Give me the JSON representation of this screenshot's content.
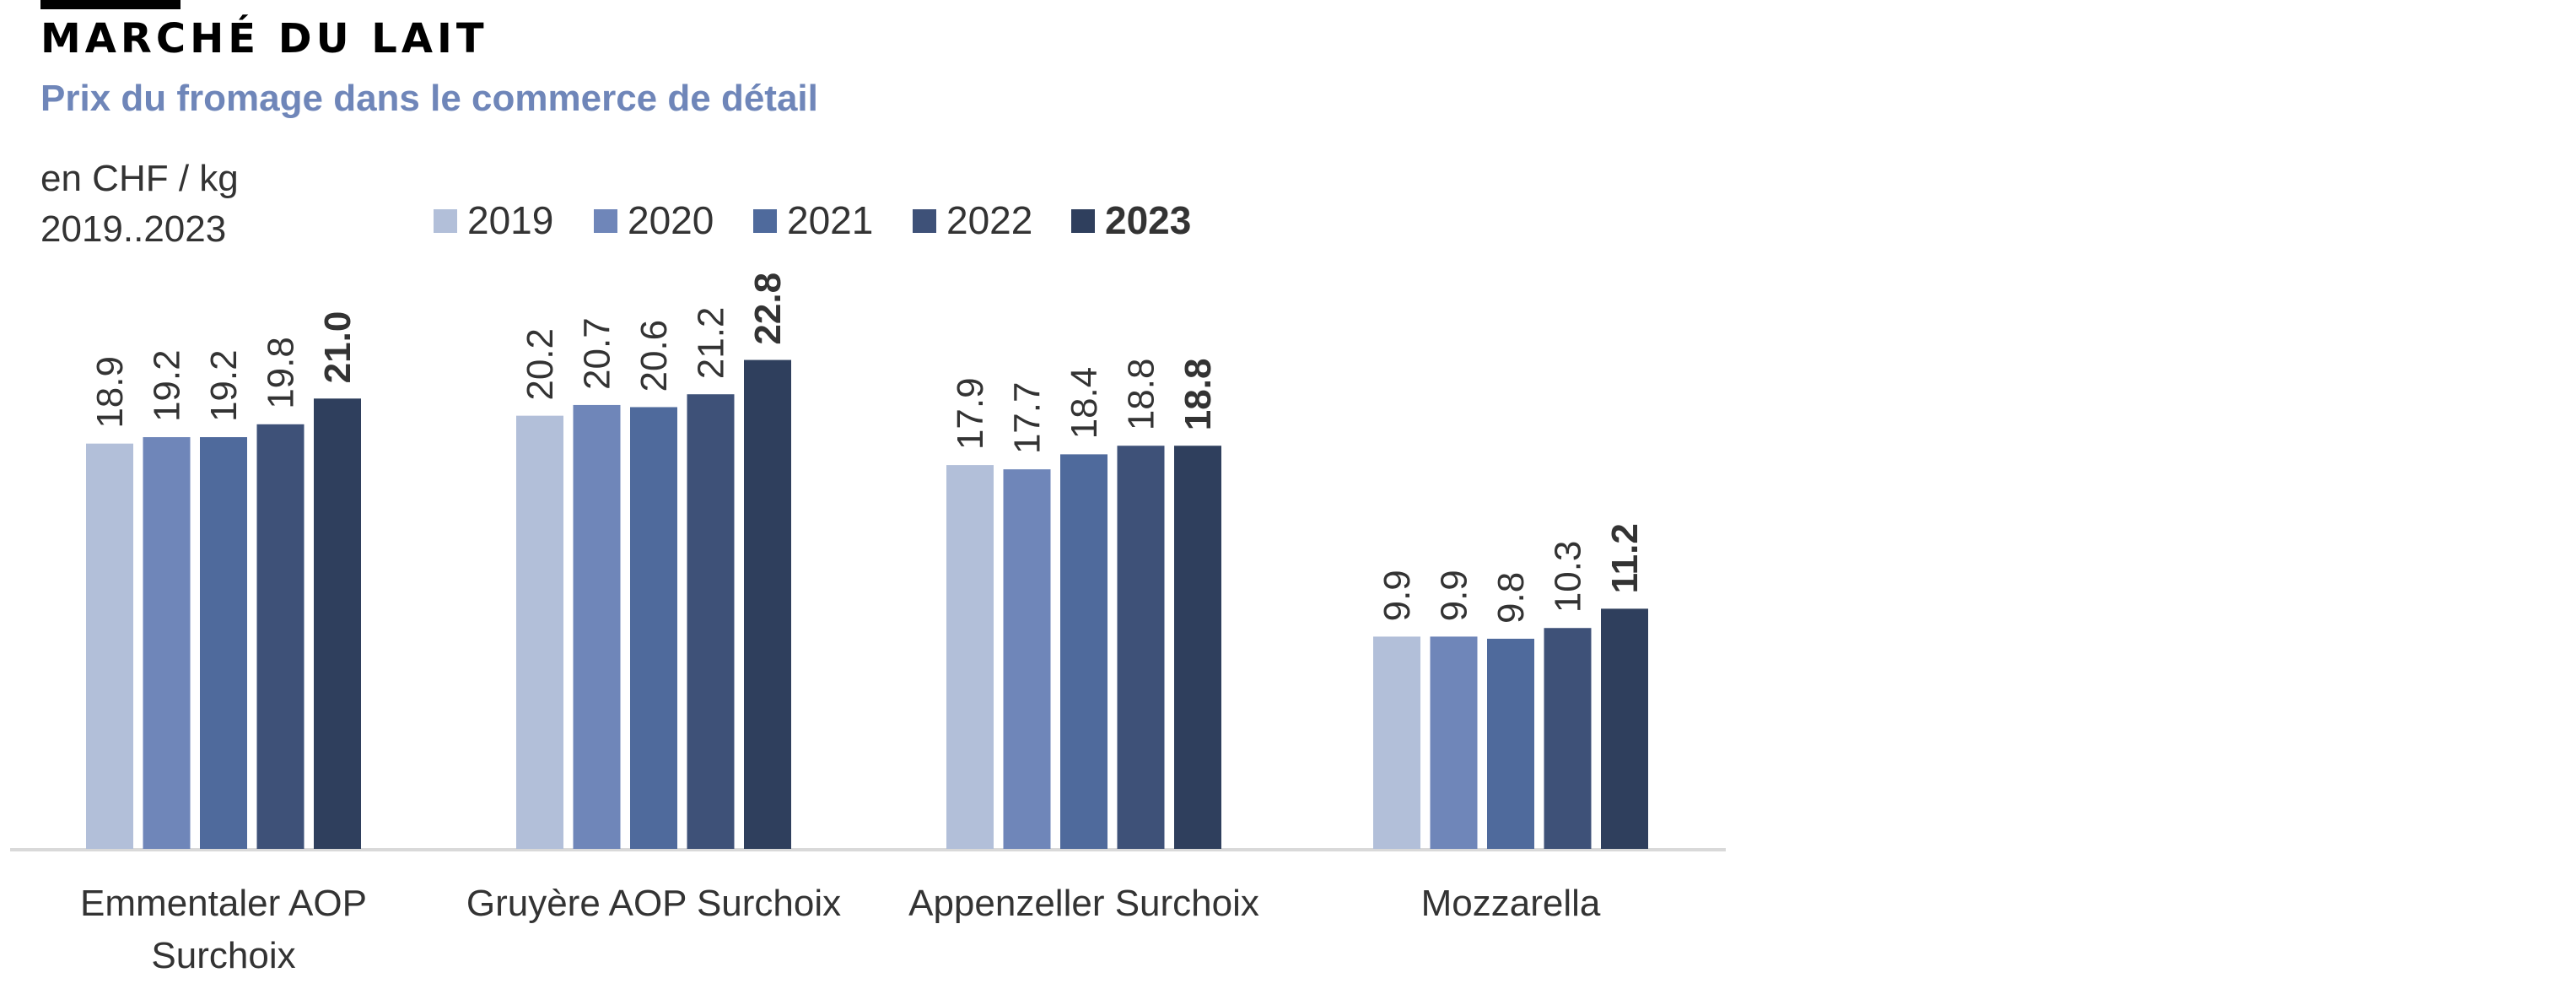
{
  "header": {
    "title": "MARCHÉ DU LAIT",
    "subtitle": "Prix du fromage dans le commerce de détail",
    "unit_line1": "en CHF / kg",
    "unit_line2": "2019..2023"
  },
  "colors": {
    "bar_2019": "#b2bfd9",
    "bar_2020": "#6f86b9",
    "bar_2021": "#4f6a9c",
    "bar_2022": "#3e5178",
    "bar_2023": "#2f3f5d",
    "axis": "#d9d9d9",
    "text": "#333333"
  },
  "chart_data": {
    "type": "bar",
    "categories": [
      "Emmentaler AOP Surchoix",
      "Gruyère AOP Surchoix",
      "Appenzeller Surchoix",
      "Mozzarella"
    ],
    "series": [
      {
        "name": "2019",
        "values": [
          18.9,
          20.2,
          17.9,
          9.9
        ]
      },
      {
        "name": "2020",
        "values": [
          19.2,
          20.7,
          17.7,
          9.9
        ]
      },
      {
        "name": "2021",
        "values": [
          19.2,
          20.6,
          18.4,
          9.8
        ]
      },
      {
        "name": "2022",
        "values": [
          19.8,
          21.2,
          18.8,
          10.3
        ]
      },
      {
        "name": "2023",
        "values": [
          21.0,
          22.8,
          18.8,
          11.2
        ]
      }
    ],
    "value_labels": [
      [
        "18.9",
        "20.2",
        "17.9",
        "9.9"
      ],
      [
        "19.2",
        "20.7",
        "17.7",
        "9.9"
      ],
      [
        "19.2",
        "20.6",
        "18.4",
        "9.8"
      ],
      [
        "19.8",
        "21.2",
        "18.8",
        "10.3"
      ],
      [
        "21.0",
        "22.8",
        "18.8",
        "11.2"
      ]
    ],
    "highlight_series": "2023",
    "ylim": [
      0,
      26.6
    ],
    "legend_position": "top",
    "grid": false,
    "xlabel": "",
    "ylabel": ""
  }
}
